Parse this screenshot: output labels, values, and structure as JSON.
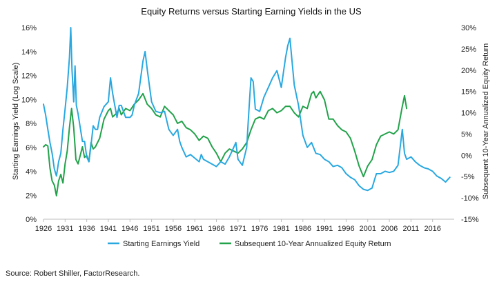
{
  "source_note": "Source: Robert Shiller, FactorResearch.",
  "chart_data": {
    "type": "line",
    "title": "Equity Returns versus Starting Earning Yields in the US",
    "ylabel": "Starting Earnings Yield (Log Scale)",
    "y2label": "Subsequent 10-Year Annualized Equity Return",
    "x_ticks": [
      "1926",
      "1931",
      "1936",
      "1941",
      "1946",
      "1951",
      "1956",
      "1961",
      "1966",
      "1971",
      "1976",
      "1981",
      "1986",
      "1991",
      "1996",
      "2001",
      "2006",
      "2011",
      "2016"
    ],
    "xlim": [
      1926,
      2021
    ],
    "y_ticks": [
      "0%",
      "2%",
      "4%",
      "6%",
      "8%",
      "10%",
      "12%",
      "14%",
      "16%"
    ],
    "ylim": [
      0,
      16
    ],
    "y2_ticks": [
      "-15%",
      "-10%",
      "-5%",
      "0%",
      "5%",
      "10%",
      "15%",
      "20%",
      "25%",
      "30%"
    ],
    "y2lim": [
      -15,
      30
    ],
    "legend_position": "bottom",
    "colors": {
      "earnings_yield": "#29A8E0",
      "equity_return": "#22A24A"
    },
    "series": [
      {
        "name": "Starting Earnings Yield",
        "axis": "left",
        "x": [
          1926,
          1926.5,
          1927,
          1927.5,
          1928,
          1928.5,
          1929,
          1929.5,
          1930,
          1930.5,
          1931,
          1931.5,
          1932,
          1932.3,
          1932.6,
          1933,
          1933.3,
          1933.6,
          1934,
          1935,
          1935.5,
          1936,
          1936.5,
          1937,
          1937.5,
          1938,
          1938.5,
          1939,
          1940,
          1941,
          1941.5,
          1942,
          1942.5,
          1943,
          1943.5,
          1944,
          1945,
          1946,
          1946.5,
          1947,
          1948,
          1949,
          1949.5,
          1950,
          1951,
          1952,
          1953,
          1954,
          1955,
          1956,
          1957,
          1957.5,
          1958,
          1959,
          1960,
          1961,
          1962,
          1962.5,
          1963,
          1964,
          1965,
          1966,
          1967,
          1968,
          1969,
          1970,
          1970.5,
          1971,
          1972,
          1973,
          1973.5,
          1974,
          1974.5,
          1975,
          1976,
          1977,
          1978,
          1979,
          1980,
          1981,
          1982,
          1982.5,
          1983,
          1984,
          1985,
          1986,
          1987,
          1988,
          1989,
          1990,
          1991,
          1992,
          1993,
          1994,
          1995,
          1996,
          1997,
          1998,
          1999,
          2000,
          2001,
          2002,
          2002.5,
          2003,
          2004,
          2005,
          2006,
          2007,
          2008,
          2009,
          2009.5,
          2010,
          2011,
          2012,
          2013,
          2014,
          2015,
          2016,
          2017,
          2018,
          2019,
          2020
        ],
        "values": [
          9.6,
          8.7,
          7.5,
          6.4,
          5.5,
          4.2,
          3.6,
          4.8,
          5.5,
          7.5,
          9.2,
          11,
          13.5,
          16,
          12.5,
          9.8,
          12.8,
          9.5,
          8.8,
          6.5,
          6.5,
          5.2,
          4.8,
          6.2,
          7.8,
          7.5,
          7.5,
          8.5,
          9.4,
          9.8,
          11.8,
          10.5,
          9.5,
          8.5,
          9.5,
          9.5,
          8.5,
          8.5,
          8.7,
          9.5,
          10.5,
          13.2,
          14,
          12.5,
          9.8,
          9.0,
          8.9,
          9.0,
          7.5,
          7.0,
          7.5,
          6.5,
          6.0,
          5.2,
          5.4,
          5.1,
          4.8,
          5.4,
          5.0,
          4.8,
          4.6,
          4.4,
          4.8,
          4.6,
          5.2,
          6.0,
          6.4,
          5.0,
          4.5,
          6.0,
          9.0,
          11.8,
          11.5,
          9.2,
          9.0,
          10.2,
          11.0,
          11.8,
          12.4,
          11.0,
          13.5,
          14.5,
          15.1,
          11.2,
          9.5,
          7.0,
          6.0,
          6.4,
          5.5,
          5.4,
          5.0,
          4.8,
          4.4,
          4.5,
          4.3,
          3.8,
          3.5,
          3.3,
          2.8,
          2.5,
          2.4,
          2.6,
          3.2,
          3.8,
          3.8,
          4.0,
          3.9,
          4.0,
          4.5,
          7.5,
          5.5,
          5.0,
          5.2,
          4.8,
          4.5,
          4.3,
          4.2,
          4.0,
          3.6,
          3.4,
          3.1,
          3.5
        ]
      },
      {
        "name": "Subsequent 10-Year Annualized Equity Return",
        "axis": "right",
        "x": [
          1926,
          1926.5,
          1927,
          1927.5,
          1928,
          1928.5,
          1929,
          1929.5,
          1930,
          1930.5,
          1931,
          1931.5,
          1932,
          1932.5,
          1933,
          1933.5,
          1934,
          1935,
          1935.5,
          1936,
          1936.5,
          1937,
          1937.5,
          1938,
          1939,
          1940,
          1941,
          1941.5,
          1942,
          1943,
          1943.5,
          1944,
          1945,
          1946,
          1947,
          1948,
          1949,
          1950,
          1951,
          1952,
          1953,
          1954,
          1955,
          1956,
          1957,
          1958,
          1959,
          1960,
          1961,
          1962,
          1963,
          1964,
          1965,
          1966,
          1967,
          1968,
          1969,
          1970,
          1971,
          1972,
          1973,
          1974,
          1975,
          1976,
          1977,
          1978,
          1979,
          1980,
          1981,
          1982,
          1983,
          1984,
          1985,
          1986,
          1987,
          1988,
          1988.5,
          1989,
          1990,
          1991,
          1992,
          1993,
          1994,
          1995,
          1996,
          1997,
          1998,
          1999,
          2000,
          2001,
          2002,
          2003,
          2004,
          2005,
          2006,
          2007,
          2008,
          2009,
          2009.5,
          2010
        ],
        "values": [
          2.0,
          2.5,
          2.2,
          -3.0,
          -6.0,
          -7.0,
          -9.5,
          -6.0,
          -4.5,
          -6.5,
          -2.0,
          1.0,
          6.5,
          11.0,
          6.5,
          -1.0,
          -2.0,
          2.0,
          -0.5,
          0.0,
          -1.5,
          3.0,
          1.5,
          2.0,
          4.0,
          8.5,
          10.5,
          11.0,
          9.0,
          10.0,
          11.0,
          9.5,
          11.0,
          10.5,
          12.0,
          13.0,
          14.5,
          12.0,
          11.0,
          9.5,
          9.0,
          11.5,
          10.5,
          9.5,
          7.5,
          8.0,
          6.5,
          6.0,
          5.0,
          3.5,
          4.5,
          4.0,
          2.0,
          0.5,
          -1.5,
          0.5,
          1.5,
          1.0,
          0.5,
          1.5,
          3.0,
          6.0,
          8.5,
          9.0,
          8.5,
          10.5,
          11.0,
          10.0,
          10.5,
          11.5,
          11.5,
          10.0,
          9.0,
          11.5,
          11.0,
          14.5,
          15.0,
          13.5,
          15.0,
          13.0,
          8.5,
          8.5,
          7.0,
          6.0,
          5.5,
          4.0,
          1.0,
          -2.5,
          -5.0,
          -2.5,
          -1.0,
          2.5,
          4.5,
          5.0,
          5.5,
          5.0,
          6.0,
          11.5,
          14.0,
          11.0
        ]
      }
    ]
  }
}
